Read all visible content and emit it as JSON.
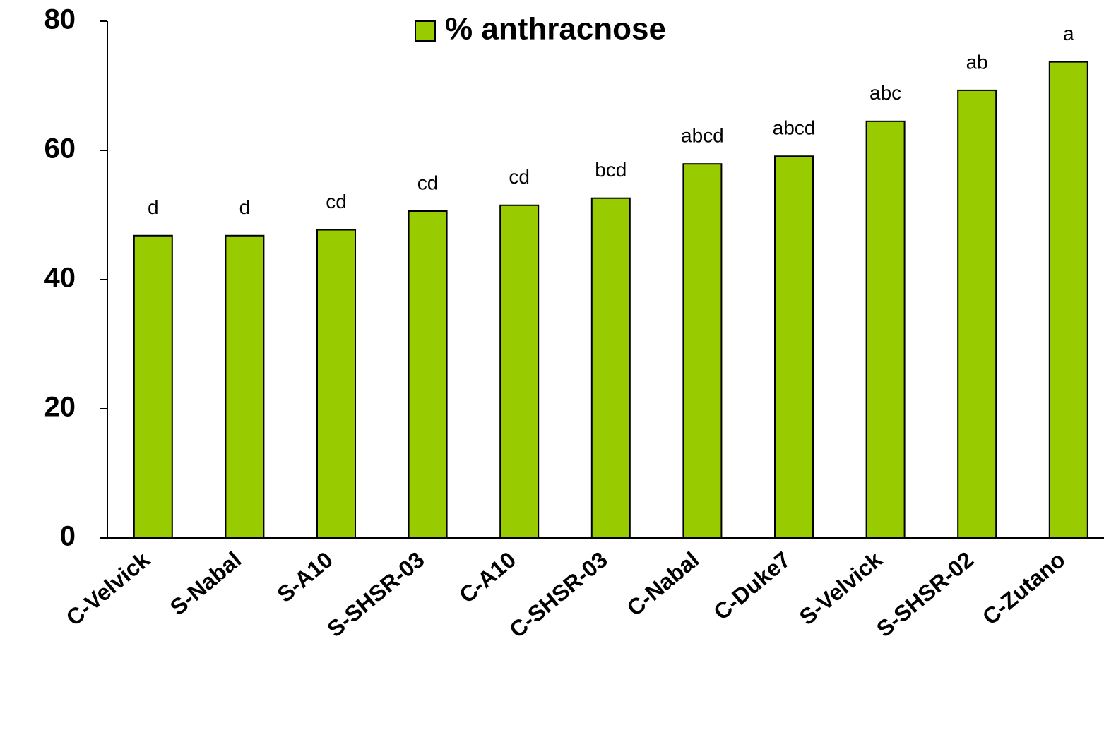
{
  "chart_data": {
    "type": "bar",
    "categories": [
      "C-Velvick",
      "S-Nabal",
      "S-A10",
      "S-SHSR-03",
      "C-A10",
      "C-SHSR-03",
      "C-Nabal",
      "C-Duke7",
      "S-Velvick",
      "S-SHSR-02",
      "C-Zutano"
    ],
    "series": [
      {
        "name": "% anthracnose",
        "color": "#99cc00",
        "values": [
          46.8,
          46.8,
          47.7,
          50.6,
          51.5,
          52.6,
          57.9,
          59.1,
          64.5,
          69.3,
          73.7
        ]
      }
    ],
    "annotations": [
      "d",
      "d",
      "cd",
      "cd",
      "cd",
      "bcd",
      "abcd",
      "abcd",
      "abc",
      "ab",
      "a"
    ],
    "ylim": [
      0,
      80
    ],
    "yticks": [
      0,
      20,
      40,
      60,
      80
    ],
    "legend": "top"
  }
}
